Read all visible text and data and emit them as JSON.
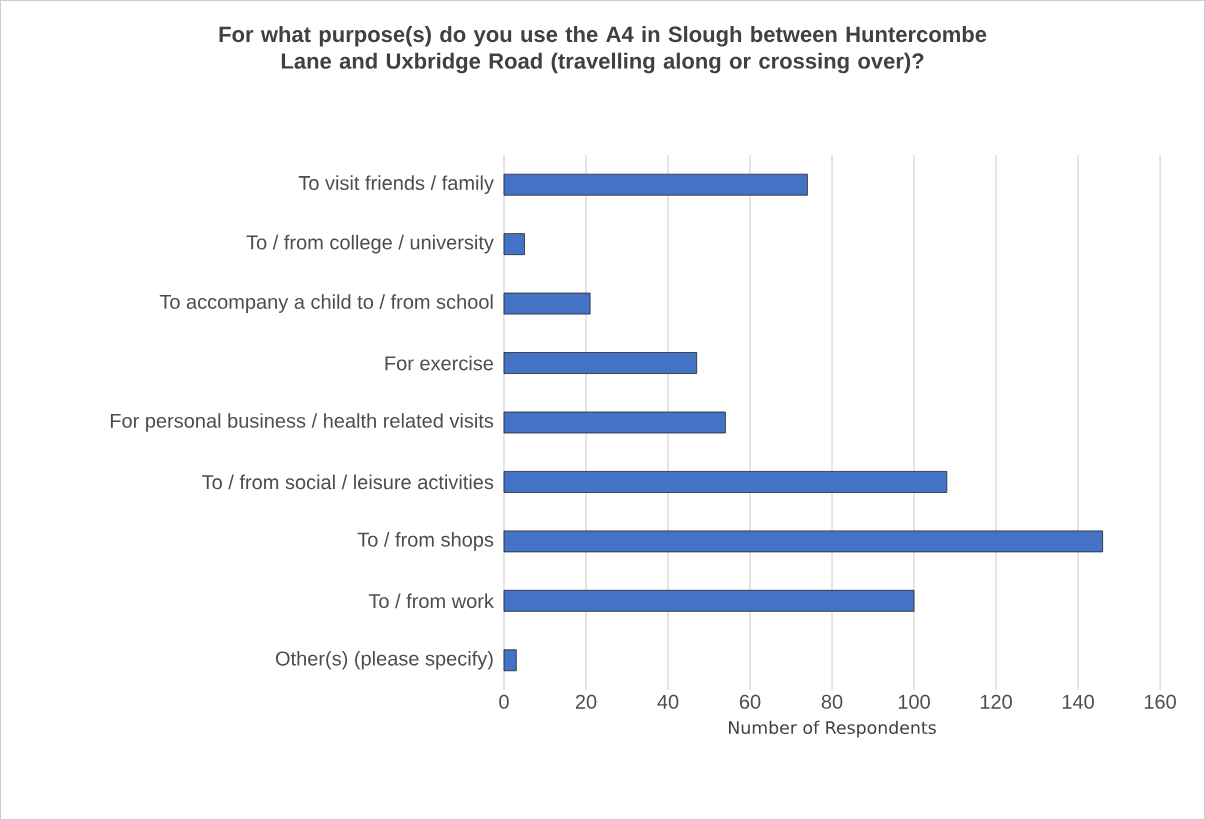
{
  "chart_data": {
    "type": "bar",
    "orientation": "horizontal",
    "title": "For what purpose(s) do you use the A4 in Slough between Huntercombe Lane and Uxbridge Road (travelling along or crossing over)?",
    "xlabel": "Number of Respondents",
    "categories": [
      "To visit friends / family",
      "To / from college / university",
      "To accompany a child to / from school",
      "For exercise",
      "For personal business / health related visits",
      "To / from social / leisure activities",
      "To / from shops",
      "To / from work",
      "Other(s) (please specify)"
    ],
    "values": [
      74,
      5,
      21,
      47,
      54,
      108,
      146,
      100,
      3
    ],
    "color": "#4472c4",
    "xlim": [
      0,
      160
    ],
    "xticks": [
      0,
      20,
      40,
      60,
      80,
      100,
      120,
      140,
      160
    ],
    "grid": "x"
  }
}
